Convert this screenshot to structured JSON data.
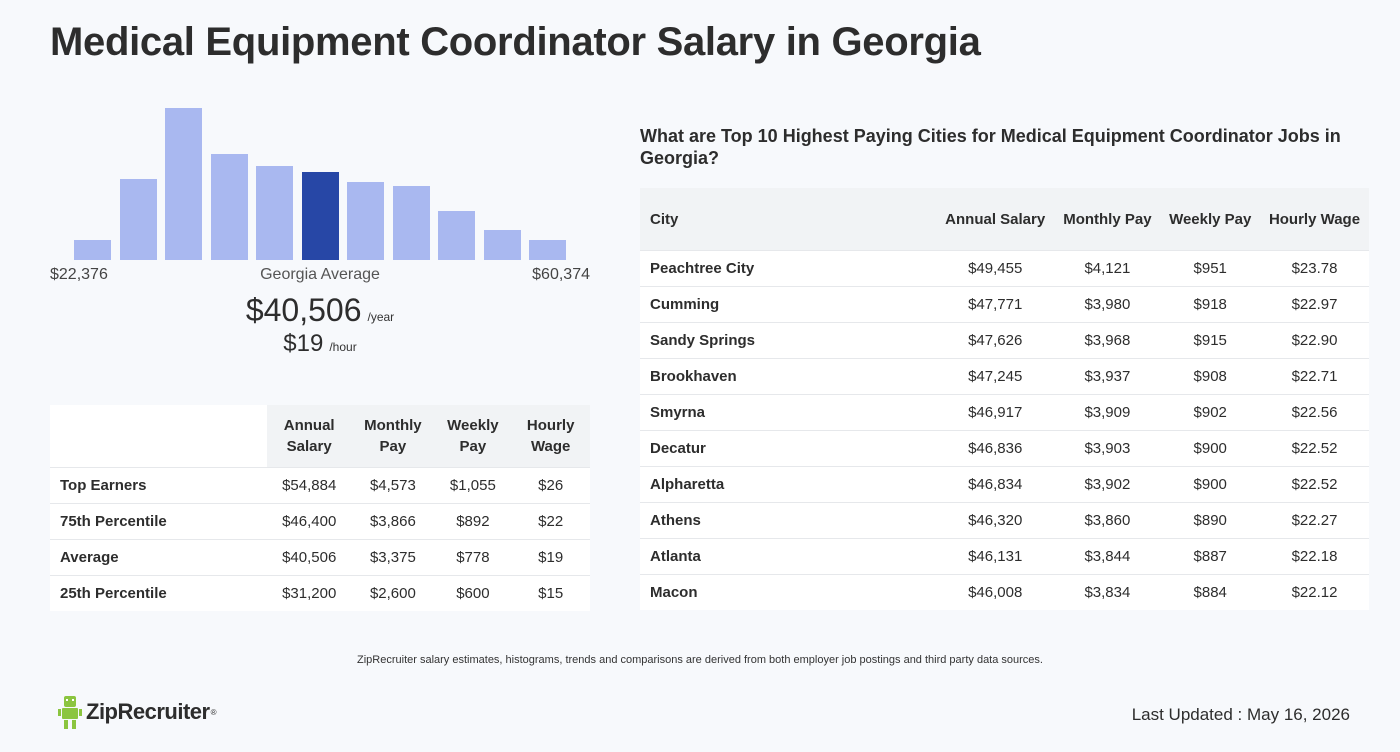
{
  "page": {
    "title": "Medical Equipment Coordinator Salary in Georgia"
  },
  "colors": {
    "bar": "#a9b8f0",
    "bar_active": "#2747a6",
    "logo_green": "#8bc53f"
  },
  "histogram": {
    "bars": [
      0.13,
      0.53,
      1.0,
      0.7,
      0.62,
      0.58,
      0.51,
      0.49,
      0.32,
      0.2,
      0.13
    ],
    "active_index": 5,
    "min_label": "$22,376",
    "max_label": "$60,374",
    "center_label": "Georgia Average"
  },
  "average": {
    "yearly": "$40,506",
    "yearly_unit": "/year",
    "hourly": "$19",
    "hourly_unit": "/hour"
  },
  "percentile_table": {
    "headers": [
      "Annual Salary",
      "Monthly Pay",
      "Weekly Pay",
      "Hourly Wage"
    ],
    "rows": [
      {
        "label": "Top Earners",
        "annual": "$54,884",
        "monthly": "$4,573",
        "weekly": "$1,055",
        "hourly": "$26"
      },
      {
        "label": "75th Percentile",
        "annual": "$46,400",
        "monthly": "$3,866",
        "weekly": "$892",
        "hourly": "$22"
      },
      {
        "label": "Average",
        "annual": "$40,506",
        "monthly": "$3,375",
        "weekly": "$778",
        "hourly": "$19"
      },
      {
        "label": "25th Percentile",
        "annual": "$31,200",
        "monthly": "$2,600",
        "weekly": "$600",
        "hourly": "$15"
      }
    ]
  },
  "cities": {
    "heading": "What are Top 10 Highest Paying Cities for Medical Equipment Coordinator Jobs in Georgia?",
    "headers": [
      "City",
      "Annual Salary",
      "Monthly Pay",
      "Weekly Pay",
      "Hourly Wage"
    ],
    "rows": [
      {
        "city": "Peachtree City",
        "annual": "$49,455",
        "monthly": "$4,121",
        "weekly": "$951",
        "hourly": "$23.78"
      },
      {
        "city": "Cumming",
        "annual": "$47,771",
        "monthly": "$3,980",
        "weekly": "$918",
        "hourly": "$22.97"
      },
      {
        "city": "Sandy Springs",
        "annual": "$47,626",
        "monthly": "$3,968",
        "weekly": "$915",
        "hourly": "$22.90"
      },
      {
        "city": "Brookhaven",
        "annual": "$47,245",
        "monthly": "$3,937",
        "weekly": "$908",
        "hourly": "$22.71"
      },
      {
        "city": "Smyrna",
        "annual": "$46,917",
        "monthly": "$3,909",
        "weekly": "$902",
        "hourly": "$22.56"
      },
      {
        "city": "Decatur",
        "annual": "$46,836",
        "monthly": "$3,903",
        "weekly": "$900",
        "hourly": "$22.52"
      },
      {
        "city": "Alpharetta",
        "annual": "$46,834",
        "monthly": "$3,902",
        "weekly": "$900",
        "hourly": "$22.52"
      },
      {
        "city": "Athens",
        "annual": "$46,320",
        "monthly": "$3,860",
        "weekly": "$890",
        "hourly": "$22.27"
      },
      {
        "city": "Atlanta",
        "annual": "$46,131",
        "monthly": "$3,844",
        "weekly": "$887",
        "hourly": "$22.18"
      },
      {
        "city": "Macon",
        "annual": "$46,008",
        "monthly": "$3,834",
        "weekly": "$884",
        "hourly": "$22.12"
      }
    ]
  },
  "footer": {
    "disclaimer": "ZipRecruiter salary estimates, histograms, trends and comparisons are derived from both employer job postings and third party data sources.",
    "brand": "ZipRecruiter",
    "brand_mark": "®",
    "logo_icon": "ziprecruiter-mascot-icon",
    "last_updated": "Last Updated : May 16, 2026"
  }
}
